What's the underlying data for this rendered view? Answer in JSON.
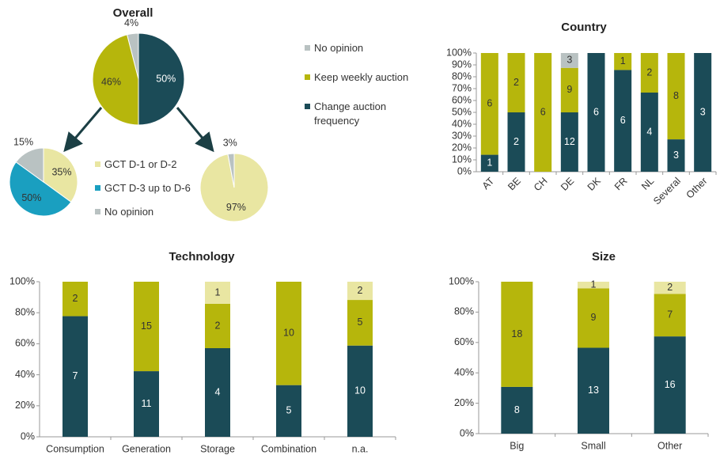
{
  "chart_data": [
    {
      "type": "pie",
      "title": "Overall",
      "direction": "counterclockwise",
      "categories": [
        "No opinion",
        "Keep weekly auction",
        "Change auction frequency"
      ],
      "values": [
        4,
        46,
        50
      ],
      "value_labels": [
        "4%",
        "46%",
        "50%"
      ],
      "colors": [
        "#b9c2c2",
        "#b6b60c",
        "#1b4b57"
      ],
      "legend": true
    },
    {
      "type": "pie",
      "direction": "clockwise",
      "categories": [
        "GCT D-1 or D-2",
        "GCT D-3 up to D-6",
        "No opinion"
      ],
      "values": [
        35,
        50,
        15
      ],
      "value_labels": [
        "35%",
        "50%",
        "15%"
      ],
      "colors": [
        "#e9e6a2",
        "#1a9fc0",
        "#b9c2c2"
      ],
      "legend": true
    },
    {
      "type": "pie",
      "direction": "clockwise",
      "values": [
        97,
        3
      ],
      "value_labels": [
        "97%",
        "3%"
      ],
      "colors": [
        "#e9e6a2",
        "#b9c2c2"
      ],
      "legend": false
    },
    {
      "type": "bar",
      "stacking": "percent",
      "title": "Country",
      "categories": [
        "AT",
        "BE",
        "CH",
        "DE",
        "DK",
        "FR",
        "NL",
        "Several",
        "Other"
      ],
      "series": [
        {
          "color": "#1b4b57",
          "values": [
            1,
            2,
            null,
            12,
            6,
            6,
            4,
            3,
            3
          ]
        },
        {
          "color": "#b6b60c",
          "values": [
            6,
            2,
            6,
            9,
            null,
            1,
            2,
            8,
            null
          ]
        },
        {
          "color": "#b9c2c2",
          "values": [
            null,
            null,
            null,
            3,
            null,
            null,
            null,
            null,
            null
          ]
        }
      ],
      "ylim": [
        0,
        100
      ],
      "yticks": [
        {
          "value": 0,
          "label": "0%"
        },
        {
          "value": 10,
          "label": "10%"
        },
        {
          "value": 20,
          "label": "20%"
        },
        {
          "value": 30,
          "label": "30%"
        },
        {
          "value": 40,
          "label": "40%"
        },
        {
          "value": 50,
          "label": "50%"
        },
        {
          "value": 60,
          "label": "60%"
        },
        {
          "value": 70,
          "label": "70%"
        },
        {
          "value": 80,
          "label": "80%"
        },
        {
          "value": 90,
          "label": "90%"
        },
        {
          "value": 100,
          "label": "100%"
        }
      ]
    },
    {
      "type": "bar",
      "stacking": "percent",
      "title": "Technology",
      "categories": [
        "Consumption",
        "Generation",
        "Storage",
        "Combination",
        "n.a."
      ],
      "series": [
        {
          "color": "#1b4b57",
          "values": [
            7,
            11,
            4,
            5,
            10
          ]
        },
        {
          "color": "#b6b60c",
          "values": [
            2,
            15,
            2,
            10,
            5
          ]
        },
        {
          "color": "#e9e6a2",
          "values": [
            null,
            null,
            1,
            null,
            2
          ]
        }
      ],
      "ylim": [
        0,
        100
      ],
      "yticks": [
        {
          "value": 0,
          "label": "0%"
        },
        {
          "value": 20,
          "label": "20%"
        },
        {
          "value": 40,
          "label": "40%"
        },
        {
          "value": 60,
          "label": "60%"
        },
        {
          "value": 80,
          "label": "80%"
        },
        {
          "value": 100,
          "label": "100%"
        }
      ]
    },
    {
      "type": "bar",
      "stacking": "percent",
      "title": "Size",
      "categories": [
        "Big",
        "Small",
        "Other"
      ],
      "series": [
        {
          "color": "#1b4b57",
          "values": [
            8,
            13,
            16
          ]
        },
        {
          "color": "#b6b60c",
          "values": [
            18,
            9,
            7
          ]
        },
        {
          "color": "#e9e6a2",
          "values": [
            null,
            1,
            2
          ]
        }
      ],
      "ylim": [
        0,
        100
      ],
      "yticks": [
        {
          "value": 0,
          "label": "0%"
        },
        {
          "value": 20,
          "label": "20%"
        },
        {
          "value": 40,
          "label": "40%"
        },
        {
          "value": 60,
          "label": "60%"
        },
        {
          "value": 80,
          "label": "80%"
        },
        {
          "value": 100,
          "label": "100%"
        }
      ]
    }
  ]
}
